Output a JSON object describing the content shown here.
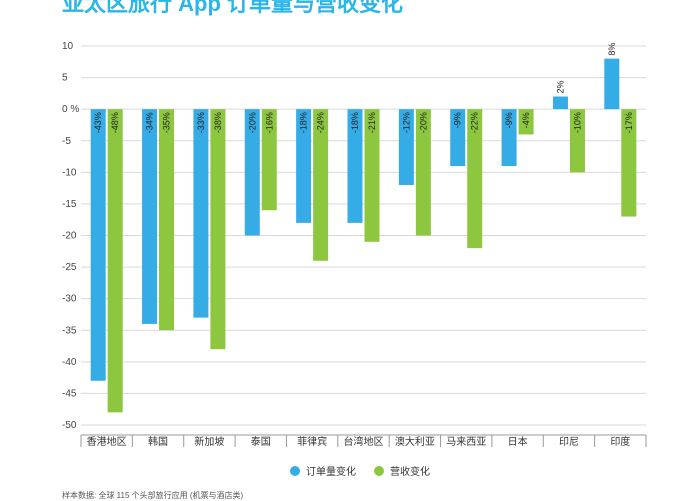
{
  "title": "亚太区旅行 App 订单量与营收变化",
  "footnote": "样本数据: 全球 115 个头部旅行应用 (机票与酒店类)",
  "colors": {
    "orders": "#35ace6",
    "revenue": "#8dc63f",
    "grid": "#d9d9d9"
  },
  "chart_data": {
    "type": "bar",
    "title": "亚太区旅行 App 订单量与营收变化",
    "categories": [
      "香港地区",
      "韩国",
      "新加坡",
      "泰国",
      "菲律宾",
      "台湾地区",
      "澳大利亚",
      "马来西亚",
      "日本",
      "印尼",
      "印度"
    ],
    "series": [
      {
        "name": "订单量变化",
        "values": [
          -43,
          -34,
          -33,
          -20,
          -18,
          -18,
          -12,
          -9,
          -9,
          2,
          8
        ],
        "labels": [
          "-43%",
          "-34%",
          "-33%",
          "-20%",
          "-18%",
          "-18%",
          "-12%",
          "-9%",
          "-9%",
          "2%",
          "8%"
        ]
      },
      {
        "name": "营收变化",
        "values": [
          -48,
          -35,
          -38,
          -16,
          -24,
          -21,
          -20,
          -22,
          -4,
          -10,
          -17
        ],
        "labels": [
          "-48%",
          "-35%",
          "-38%",
          "-16%",
          "-24%",
          "-21%",
          "-20%",
          "-22%",
          "-4%",
          "-10%",
          "-17%"
        ]
      }
    ],
    "yticks": [
      "10",
      "5",
      "0 %",
      "-5",
      "-10",
      "-15",
      "-20",
      "-25",
      "-30",
      "-35",
      "-40",
      "-45",
      "-50"
    ],
    "ylim": [
      -50,
      10
    ],
    "grid": true,
    "legend": "bottom"
  }
}
